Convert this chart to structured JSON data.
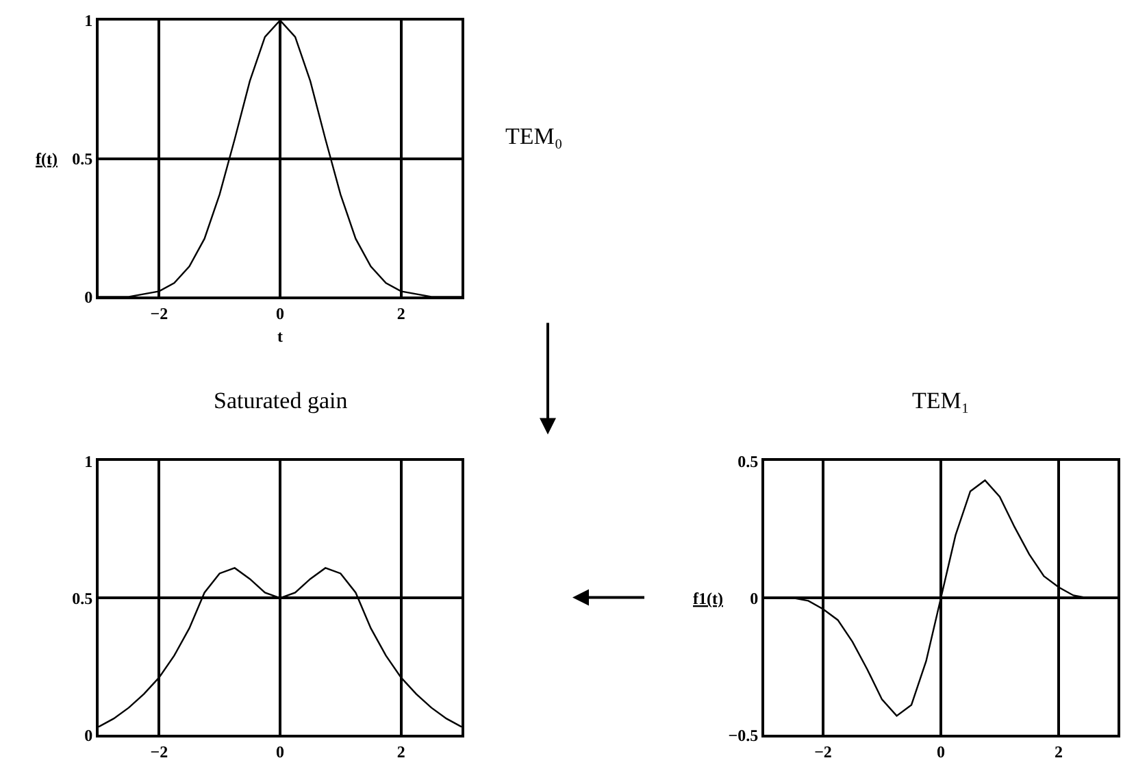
{
  "chart_data": [
    {
      "type": "line",
      "x": [
        -3,
        -2.75,
        -2.5,
        -2.25,
        -2,
        -1.75,
        -1.5,
        -1.25,
        -1,
        -0.75,
        -0.5,
        -0.25,
        0,
        0.25,
        0.5,
        0.75,
        1,
        1.25,
        1.5,
        1.75,
        2,
        2.25,
        2.5,
        2.75,
        3
      ],
      "series": [
        {
          "color": "#000000",
          "values": [
            0,
            0,
            0,
            0.01,
            0.02,
            0.05,
            0.11,
            0.21,
            0.37,
            0.57,
            0.78,
            0.94,
            1,
            0.94,
            0.78,
            0.57,
            0.37,
            0.21,
            0.11,
            0.05,
            0.02,
            0.01,
            0,
            0,
            0
          ]
        }
      ],
      "xlabel": "t",
      "ylabel": "f(t)",
      "annotations": [
        "TEM₀"
      ],
      "xlim": [
        -3,
        3
      ],
      "xticks": [
        -2,
        0,
        2
      ],
      "ylim": [
        0,
        1
      ],
      "yticks": [
        0,
        0.5,
        1
      ],
      "grid": true
    },
    {
      "type": "line",
      "x": [
        -3,
        -2.75,
        -2.5,
        -2.25,
        -2,
        -1.75,
        -1.5,
        -1.25,
        -1,
        -0.75,
        -0.5,
        -0.25,
        0,
        0.25,
        0.5,
        0.75,
        1,
        1.25,
        1.5,
        1.75,
        2,
        2.25,
        2.5,
        2.75,
        3
      ],
      "series": [
        {
          "color": "#000000",
          "values": [
            0.03,
            0.06,
            0.1,
            0.15,
            0.21,
            0.29,
            0.39,
            0.52,
            0.59,
            0.61,
            0.57,
            0.52,
            0.5,
            0.52,
            0.57,
            0.61,
            0.59,
            0.52,
            0.39,
            0.29,
            0.21,
            0.15,
            0.1,
            0.06,
            0.03
          ]
        }
      ],
      "title": "Saturated gain",
      "xlim": [
        -3,
        3
      ],
      "xticks": [
        -2,
        0,
        2
      ],
      "ylim": [
        0,
        1
      ],
      "yticks": [
        0,
        0.5,
        1
      ],
      "grid": true
    },
    {
      "type": "line",
      "x": [
        -3,
        -2.75,
        -2.5,
        -2.25,
        -2,
        -1.75,
        -1.5,
        -1.25,
        -1,
        -0.75,
        -0.5,
        -0.25,
        0,
        0.25,
        0.5,
        0.75,
        1,
        1.25,
        1.5,
        1.75,
        2,
        2.25,
        2.5,
        2.75,
        3
      ],
      "series": [
        {
          "color": "#000000",
          "values": [
            0,
            0,
            0,
            -0.01,
            -0.04,
            -0.08,
            -0.16,
            -0.26,
            -0.37,
            -0.43,
            -0.39,
            -0.23,
            0,
            0.23,
            0.39,
            0.43,
            0.37,
            0.26,
            0.16,
            0.08,
            0.04,
            0.01,
            0,
            0,
            0
          ]
        }
      ],
      "title": "TEM₁",
      "ylabel": "f1(t)",
      "xlim": [
        -3,
        3
      ],
      "xticks": [
        -2,
        0,
        2
      ],
      "ylim": [
        -0.5,
        0.5
      ],
      "yticks": [
        -0.5,
        0,
        0.5
      ],
      "grid": true
    }
  ]
}
